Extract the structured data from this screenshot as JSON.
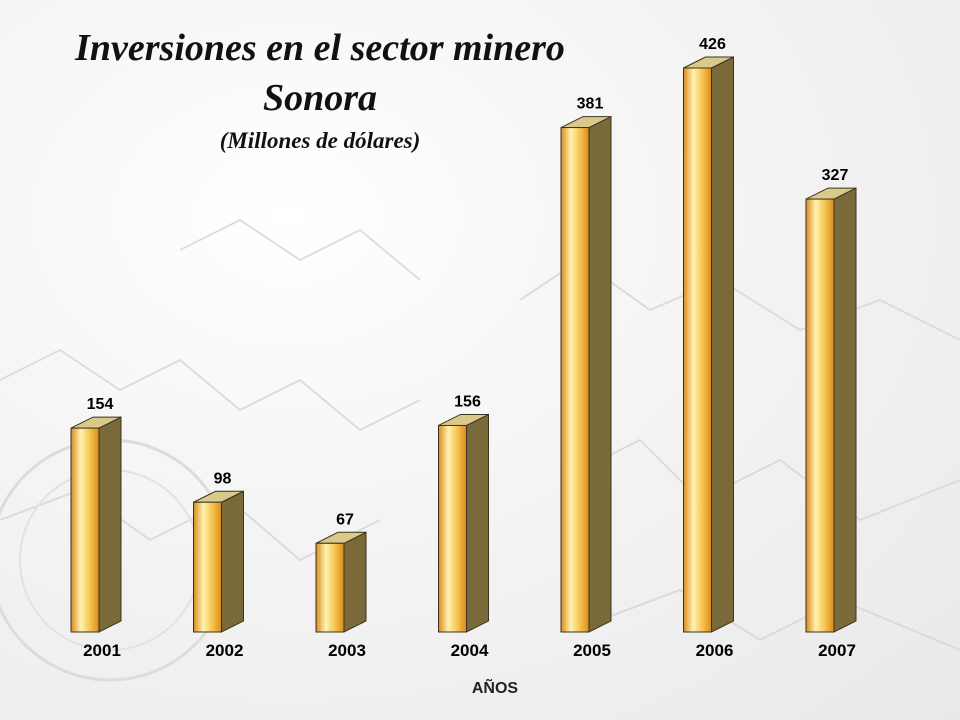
{
  "chart_data": {
    "type": "bar",
    "title": "Inversiones en el sector minero",
    "title_line2": "Sonora",
    "subtitle": "(Millones de dólares)",
    "xlabel": "AÑOS",
    "ylabel": "",
    "categories": [
      "2001",
      "2002",
      "2003",
      "2004",
      "2005",
      "2006",
      "2007"
    ],
    "values": [
      154,
      98,
      67,
      156,
      381,
      426,
      327
    ],
    "ylim": [
      0,
      426
    ],
    "grid": false,
    "legend": "none",
    "bar_style": "3d-cylinder",
    "colors": {
      "bar_front_light": "#fff3b0",
      "bar_front_mid": "#f5c04a",
      "bar_front_dark": "#d98a1e",
      "bar_side": "#7a6a3a",
      "bar_top": "#d9c98a"
    }
  }
}
